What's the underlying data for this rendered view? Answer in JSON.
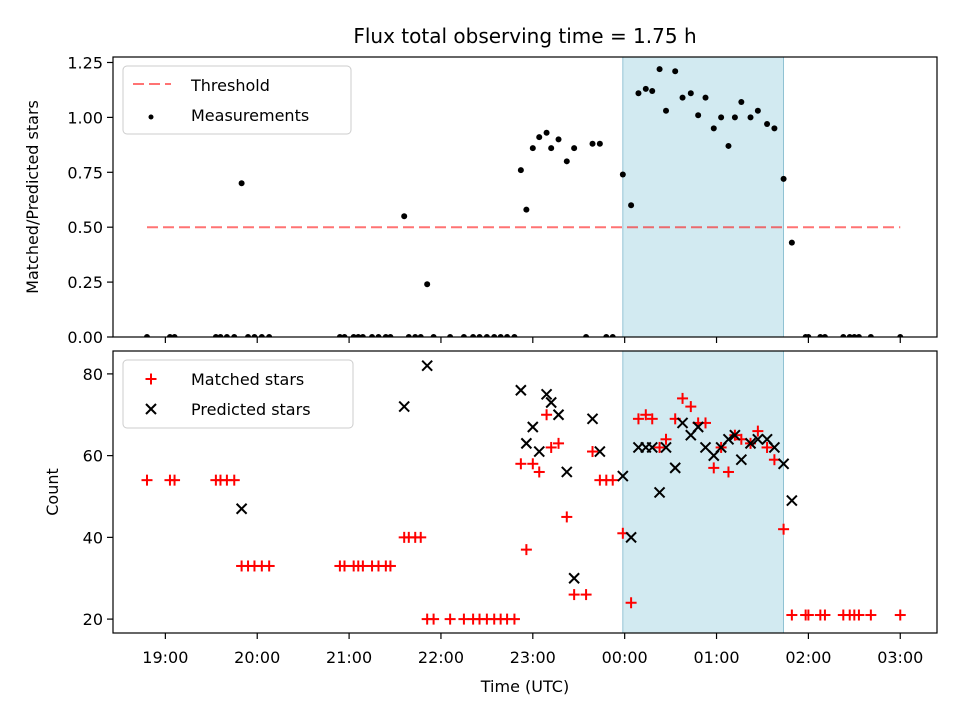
{
  "title": "Flux total observing time = 1.75 h",
  "xlabel": "Time (UTC)",
  "x_ticks": [
    "19:00",
    "20:00",
    "21:00",
    "22:00",
    "23:00",
    "00:00",
    "01:00",
    "02:00",
    "03:00"
  ],
  "chart_data": [
    {
      "type": "scatter",
      "ylabel": "Matched/Predicted stars",
      "xlim_hours": [
        18.43,
        27.4
      ],
      "ylim": [
        0,
        1.275
      ],
      "y_ticks": [
        "0.00",
        "0.25",
        "0.50",
        "0.75",
        "1.00",
        "1.25"
      ],
      "legend_position": "upper-left",
      "highlight_span_hours": [
        23.98,
        25.73
      ],
      "highlight_color": "#add8e6",
      "threshold": {
        "name": "Threshold",
        "value": 0.5,
        "x_range_hours": [
          18.8,
          27.0
        ],
        "color": "#ff0000",
        "style": "dashed"
      },
      "series": [
        {
          "name": "Measurements",
          "color": "#000000",
          "marker": "dot",
          "points": [
            [
              18.8,
              0
            ],
            [
              19.05,
              0
            ],
            [
              19.1,
              0
            ],
            [
              19.55,
              0
            ],
            [
              19.6,
              0
            ],
            [
              19.67,
              0
            ],
            [
              19.75,
              0
            ],
            [
              19.83,
              0.7
            ],
            [
              19.9,
              0
            ],
            [
              19.97,
              0
            ],
            [
              20.05,
              0
            ],
            [
              20.13,
              0
            ],
            [
              20.9,
              0
            ],
            [
              20.95,
              0
            ],
            [
              21.05,
              0
            ],
            [
              21.1,
              0
            ],
            [
              21.15,
              0
            ],
            [
              21.25,
              0
            ],
            [
              21.32,
              0
            ],
            [
              21.4,
              0
            ],
            [
              21.45,
              0
            ],
            [
              21.6,
              0.55
            ],
            [
              21.65,
              0
            ],
            [
              21.72,
              0
            ],
            [
              21.78,
              0
            ],
            [
              21.85,
              0.24
            ],
            [
              21.92,
              0
            ],
            [
              22.1,
              0
            ],
            [
              22.25,
              0
            ],
            [
              22.35,
              0
            ],
            [
              22.42,
              0
            ],
            [
              22.5,
              0
            ],
            [
              22.58,
              0
            ],
            [
              22.65,
              0
            ],
            [
              22.72,
              0
            ],
            [
              22.8,
              0
            ],
            [
              22.87,
              0.76
            ],
            [
              22.93,
              0.58
            ],
            [
              23.0,
              0.86
            ],
            [
              23.07,
              0.91
            ],
            [
              23.15,
              0.93
            ],
            [
              23.2,
              0.86
            ],
            [
              23.28,
              0.9
            ],
            [
              23.37,
              0.8
            ],
            [
              23.45,
              0.86
            ],
            [
              23.58,
              0
            ],
            [
              23.65,
              0.88
            ],
            [
              23.73,
              0.88
            ],
            [
              23.8,
              0
            ],
            [
              23.87,
              0
            ],
            [
              23.98,
              0.74
            ],
            [
              24.07,
              0.6
            ],
            [
              24.15,
              1.11
            ],
            [
              24.23,
              1.13
            ],
            [
              24.3,
              1.12
            ],
            [
              24.38,
              1.22
            ],
            [
              24.45,
              1.03
            ],
            [
              24.55,
              1.21
            ],
            [
              24.63,
              1.09
            ],
            [
              24.72,
              1.11
            ],
            [
              24.8,
              1.01
            ],
            [
              24.88,
              1.09
            ],
            [
              24.97,
              0.95
            ],
            [
              25.05,
              1.0
            ],
            [
              25.13,
              0.87
            ],
            [
              25.2,
              1.0
            ],
            [
              25.27,
              1.07
            ],
            [
              25.37,
              1.0
            ],
            [
              25.45,
              1.03
            ],
            [
              25.55,
              0.97
            ],
            [
              25.63,
              0.95
            ],
            [
              25.73,
              0.72
            ],
            [
              25.82,
              0.43
            ],
            [
              25.97,
              0
            ],
            [
              26.0,
              0
            ],
            [
              26.13,
              0
            ],
            [
              26.18,
              0
            ],
            [
              26.38,
              0
            ],
            [
              26.45,
              0
            ],
            [
              26.5,
              0
            ],
            [
              26.55,
              0
            ],
            [
              26.68,
              0
            ],
            [
              27.0,
              0
            ]
          ]
        }
      ]
    },
    {
      "type": "scatter",
      "ylabel": "Count",
      "xlim_hours": [
        18.43,
        27.4
      ],
      "ylim": [
        16.6,
        85.6
      ],
      "y_ticks": [
        "20",
        "40",
        "60",
        "80"
      ],
      "legend_position": "upper-left",
      "highlight_span_hours": [
        23.98,
        25.73
      ],
      "highlight_color": "#add8e6",
      "series": [
        {
          "name": "Matched stars",
          "color": "#ff0000",
          "marker": "plus",
          "points": [
            [
              18.8,
              54
            ],
            [
              19.05,
              54
            ],
            [
              19.1,
              54
            ],
            [
              19.55,
              54
            ],
            [
              19.6,
              54
            ],
            [
              19.67,
              54
            ],
            [
              19.75,
              54
            ],
            [
              19.83,
              33
            ],
            [
              19.9,
              33
            ],
            [
              19.97,
              33
            ],
            [
              20.05,
              33
            ],
            [
              20.13,
              33
            ],
            [
              20.9,
              33
            ],
            [
              20.95,
              33
            ],
            [
              21.05,
              33
            ],
            [
              21.1,
              33
            ],
            [
              21.15,
              33
            ],
            [
              21.25,
              33
            ],
            [
              21.32,
              33
            ],
            [
              21.4,
              33
            ],
            [
              21.45,
              33
            ],
            [
              21.6,
              40
            ],
            [
              21.65,
              40
            ],
            [
              21.72,
              40
            ],
            [
              21.78,
              40
            ],
            [
              21.85,
              20
            ],
            [
              21.92,
              20
            ],
            [
              22.1,
              20
            ],
            [
              22.25,
              20
            ],
            [
              22.35,
              20
            ],
            [
              22.42,
              20
            ],
            [
              22.5,
              20
            ],
            [
              22.58,
              20
            ],
            [
              22.65,
              20
            ],
            [
              22.72,
              20
            ],
            [
              22.8,
              20
            ],
            [
              22.87,
              58
            ],
            [
              22.93,
              37
            ],
            [
              23.0,
              58
            ],
            [
              23.07,
              56
            ],
            [
              23.15,
              70
            ],
            [
              23.2,
              62
            ],
            [
              23.28,
              63
            ],
            [
              23.37,
              45
            ],
            [
              23.45,
              26
            ],
            [
              23.58,
              26
            ],
            [
              23.65,
              61
            ],
            [
              23.73,
              54
            ],
            [
              23.8,
              54
            ],
            [
              23.87,
              54
            ],
            [
              23.98,
              41
            ],
            [
              24.07,
              24
            ],
            [
              24.15,
              69
            ],
            [
              24.23,
              70
            ],
            [
              24.3,
              69
            ],
            [
              24.38,
              62
            ],
            [
              24.45,
              64
            ],
            [
              24.55,
              69
            ],
            [
              24.63,
              74
            ],
            [
              24.72,
              72
            ],
            [
              24.8,
              68
            ],
            [
              24.88,
              68
            ],
            [
              24.97,
              57
            ],
            [
              25.05,
              62
            ],
            [
              25.13,
              56
            ],
            [
              25.2,
              65
            ],
            [
              25.27,
              64
            ],
            [
              25.37,
              63
            ],
            [
              25.45,
              66
            ],
            [
              25.55,
              62
            ],
            [
              25.63,
              59
            ],
            [
              25.73,
              42
            ],
            [
              25.82,
              21
            ],
            [
              25.97,
              21
            ],
            [
              26.0,
              21
            ],
            [
              26.13,
              21
            ],
            [
              26.18,
              21
            ],
            [
              26.38,
              21
            ],
            [
              26.45,
              21
            ],
            [
              26.5,
              21
            ],
            [
              26.55,
              21
            ],
            [
              26.68,
              21
            ],
            [
              27.0,
              21
            ]
          ]
        },
        {
          "name": "Predicted stars",
          "color": "#000000",
          "marker": "cross",
          "points": [
            [
              19.83,
              47
            ],
            [
              21.6,
              72
            ],
            [
              21.85,
              82
            ],
            [
              22.87,
              76
            ],
            [
              22.93,
              63
            ],
            [
              23.0,
              67
            ],
            [
              23.07,
              61
            ],
            [
              23.15,
              75
            ],
            [
              23.2,
              73
            ],
            [
              23.28,
              70
            ],
            [
              23.37,
              56
            ],
            [
              23.45,
              30
            ],
            [
              23.65,
              69
            ],
            [
              23.73,
              61
            ],
            [
              23.98,
              55
            ],
            [
              24.07,
              40
            ],
            [
              24.15,
              62
            ],
            [
              24.23,
              62
            ],
            [
              24.3,
              62
            ],
            [
              24.38,
              51
            ],
            [
              24.45,
              62
            ],
            [
              24.55,
              57
            ],
            [
              24.63,
              68
            ],
            [
              24.72,
              65
            ],
            [
              24.8,
              67
            ],
            [
              24.88,
              62
            ],
            [
              24.97,
              60
            ],
            [
              25.05,
              62
            ],
            [
              25.13,
              64
            ],
            [
              25.2,
              65
            ],
            [
              25.27,
              59
            ],
            [
              25.37,
              63
            ],
            [
              25.45,
              64
            ],
            [
              25.55,
              64
            ],
            [
              25.63,
              62
            ],
            [
              25.73,
              58
            ],
            [
              25.82,
              49
            ]
          ]
        }
      ]
    }
  ]
}
